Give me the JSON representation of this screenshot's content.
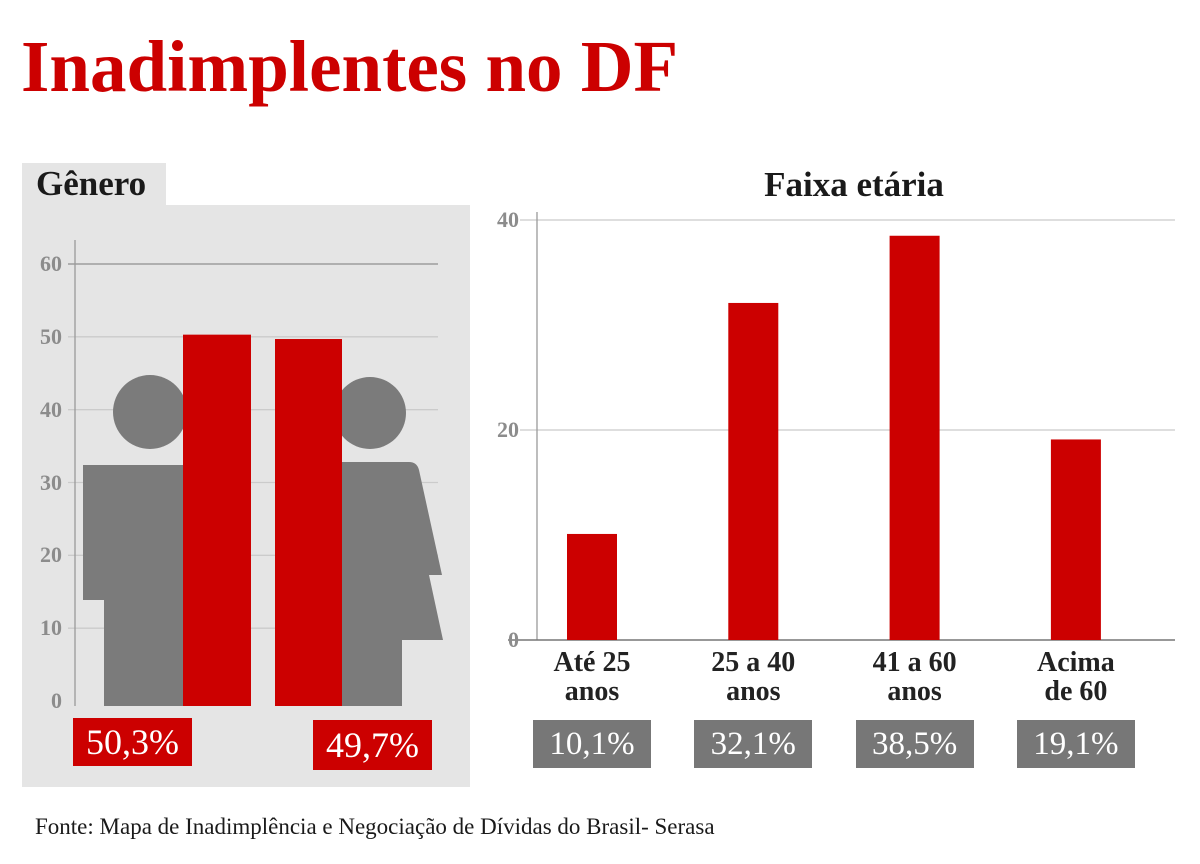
{
  "title": "Inadimplentes no DF",
  "footer": {
    "source": "Fonte: Mapa de Inadimplência e Negociação de Dívidas do Brasil- Serasa"
  },
  "colors": {
    "accent": "#cc0000",
    "panel": "#e5e5e5",
    "figure": "#7b7b7b"
  },
  "chart_data": [
    {
      "type": "bar",
      "title": "Gênero",
      "values": [
        50.3,
        49.7
      ],
      "data_labels": [
        "50,3%",
        "49,7%"
      ],
      "ylim": [
        0,
        60
      ],
      "yticks": [
        0,
        10,
        20,
        30,
        40,
        50,
        60
      ],
      "grid": true,
      "icons": [
        "male-figure-icon",
        "female-figure-icon"
      ],
      "bar_color": "#cc0000",
      "label_box_color": "#cc0000"
    },
    {
      "type": "bar",
      "title": "Faixa etária",
      "categories": [
        "Até 25 anos",
        "25 a 40 anos",
        "41 a 60 anos",
        "Acima de 60"
      ],
      "values": [
        10.1,
        32.1,
        38.5,
        19.1
      ],
      "data_labels": [
        "10,1%",
        "32,1%",
        "38,5%",
        "19,1%"
      ],
      "ylim": [
        0,
        40
      ],
      "yticks": [
        0,
        20,
        40
      ],
      "grid": true,
      "bar_color": "#cc0000",
      "label_box_color": "#777777"
    }
  ]
}
